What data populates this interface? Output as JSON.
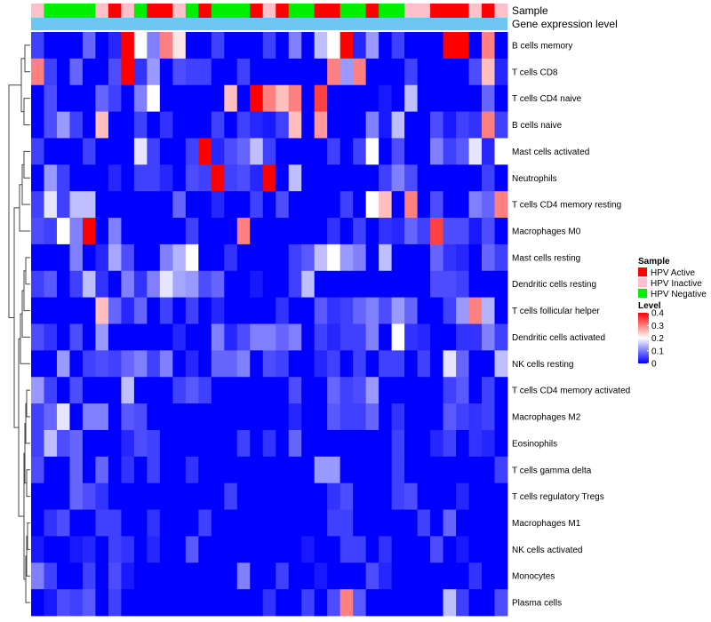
{
  "chart_data": {
    "type": "heatmap",
    "annotation_labels": {
      "sample": "Sample",
      "gene": "Gene expression level"
    },
    "row_labels": [
      "B cells memory",
      "T cells CD8",
      "T cells CD4 naive",
      "B cells naive",
      "Mast cells activated",
      "Neutrophils",
      "T cells CD4 memory resting",
      "Macrophages M0",
      "Mast cells resting",
      "Dendritic cells resting",
      "T cells follicular helper",
      "Dendritic cells activated",
      "NK cells resting",
      "T cells CD4 memory activated",
      "Macrophages M2",
      "Eosinophils",
      "T cells gamma delta",
      "T cells regulatory  Tregs",
      "Macrophages M1",
      "NK cells activated",
      "Monocytes",
      "Plasma cells"
    ],
    "sample_groups": [
      "Inactive",
      "Negative",
      "Negative",
      "Negative",
      "Negative",
      "Inactive",
      "Active",
      "Inactive",
      "Negative",
      "Active",
      "Active",
      "Inactive",
      "Negative",
      "Active",
      "Negative",
      "Negative",
      "Negative",
      "Active",
      "Inactive",
      "Active",
      "Negative",
      "Negative",
      "Active",
      "Active",
      "Negative",
      "Negative",
      "Active",
      "Negative",
      "Negative",
      "Inactive",
      "Inactive",
      "Active",
      "Active",
      "Active",
      "Inactive",
      "Active",
      "Inactive"
    ],
    "gene_expression_color": "#6ec6f2",
    "legend_sample": {
      "title": "Sample",
      "items": [
        {
          "label": "HPV Active",
          "color": "#ff0000"
        },
        {
          "label": "HPV Inactive",
          "color": "#ffc0cb"
        },
        {
          "label": "HPV Negative",
          "color": "#00ee00"
        }
      ]
    },
    "legend_level": {
      "title": "Level",
      "ticks": [
        "0.4",
        "0.3",
        "0.2",
        "0.1",
        "0"
      ],
      "tick_values": [
        0.4,
        0.3,
        0.2,
        0.1,
        0
      ],
      "range": [
        0,
        0.4
      ],
      "colors": [
        "#0000ff",
        "#ffffff",
        "#ff0000"
      ]
    },
    "values": [
      [
        0.05,
        0,
        0,
        0,
        0.08,
        0,
        0.03,
        0.4,
        0.2,
        0.1,
        0.3,
        0.22,
        0,
        0,
        0.05,
        0,
        0,
        0,
        0.05,
        0,
        0.1,
        0,
        0.15,
        0.2,
        0.4,
        0.03,
        0.12,
        0,
        0.05,
        0,
        0,
        0,
        0.4,
        0.4,
        0,
        0.3,
        0
      ],
      [
        0.3,
        0.05,
        0,
        0.08,
        0,
        0,
        0.06,
        0.4,
        0.04,
        0.12,
        0,
        0.06,
        0.05,
        0.05,
        0,
        0,
        0.05,
        0,
        0,
        0,
        0,
        0,
        0,
        0.3,
        0.12,
        0.3,
        0,
        0,
        0,
        0.05,
        0,
        0,
        0,
        0,
        0.06,
        0.25,
        0.03
      ],
      [
        0,
        0.06,
        0,
        0,
        0,
        0.08,
        0.05,
        0,
        0.1,
        0.2,
        0,
        0,
        0,
        0,
        0,
        0.25,
        0,
        0.4,
        0.3,
        0.25,
        0.3,
        0,
        0.35,
        0,
        0,
        0,
        0,
        0.02,
        0,
        0.15,
        0,
        0,
        0,
        0,
        0,
        0.08,
        0
      ],
      [
        0,
        0.06,
        0.12,
        0.05,
        0,
        0.25,
        0,
        0,
        0.05,
        0,
        0.04,
        0,
        0,
        0,
        0.05,
        0,
        0.05,
        0.03,
        0.02,
        0.05,
        0.25,
        0,
        0.28,
        0,
        0,
        0,
        0.1,
        0.02,
        0.15,
        0,
        0,
        0.06,
        0.02,
        0.05,
        0.04,
        0.3,
        0.05
      ],
      [
        0.05,
        0,
        0,
        0,
        0.05,
        0,
        0,
        0,
        0.18,
        0.05,
        0,
        0,
        0.05,
        0.4,
        0.03,
        0.06,
        0.08,
        0.15,
        0.05,
        0,
        0,
        0,
        0,
        0.05,
        0,
        0.05,
        0.2,
        0,
        0.06,
        0,
        0,
        0.1,
        0.05,
        0.07,
        0.18,
        0.03,
        0.2
      ],
      [
        0,
        0.12,
        0.05,
        0,
        0,
        0,
        0.03,
        0,
        0.05,
        0.05,
        0.03,
        0,
        0.06,
        0.05,
        0.4,
        0.05,
        0.06,
        0.03,
        0.4,
        0,
        0.15,
        0,
        0,
        0,
        0,
        0,
        0,
        0.05,
        0.1,
        0.06,
        0,
        0,
        0,
        0,
        0,
        0.05,
        0
      ],
      [
        0.05,
        0.18,
        0.05,
        0.15,
        0.15,
        0,
        0,
        0,
        0,
        0,
        0,
        0.08,
        0,
        0,
        0.03,
        0,
        0,
        0.05,
        0,
        0.06,
        0,
        0,
        0,
        0,
        0.05,
        0,
        0.2,
        0.25,
        0,
        0.3,
        0,
        0.06,
        0,
        0,
        0.1,
        0.08,
        0.3
      ],
      [
        0.06,
        0.05,
        0.2,
        0.1,
        0.4,
        0,
        0.1,
        0,
        0,
        0,
        0,
        0,
        0.05,
        0,
        0,
        0,
        0.3,
        0,
        0,
        0,
        0,
        0,
        0,
        0.04,
        0,
        0.05,
        0,
        0.04,
        0.03,
        0.08,
        0.05,
        0.35,
        0.06,
        0.06,
        0.02,
        0.06,
        0
      ],
      [
        0,
        0,
        0,
        0.1,
        0,
        0.03,
        0.13,
        0.06,
        0,
        0,
        0.1,
        0.14,
        0.2,
        0,
        0,
        0.04,
        0,
        0,
        0,
        0,
        0.05,
        0.07,
        0.15,
        0.2,
        0.12,
        0.1,
        0,
        0.15,
        0,
        0,
        0,
        0.08,
        0.04,
        0.03,
        0,
        0.08,
        0.05
      ],
      [
        0.05,
        0.07,
        0,
        0.05,
        0.15,
        0.04,
        0,
        0.1,
        0.04,
        0.1,
        0.18,
        0.13,
        0.12,
        0.06,
        0.08,
        0,
        0,
        0.02,
        0,
        0,
        0.05,
        0.15,
        0,
        0,
        0,
        0,
        0,
        0,
        0,
        0,
        0,
        0.06,
        0.06,
        0.05,
        0,
        0,
        0
      ],
      [
        0,
        0,
        0,
        0,
        0,
        0.25,
        0.08,
        0.03,
        0.08,
        0,
        0.05,
        0,
        0.05,
        0,
        0.03,
        0,
        0,
        0,
        0,
        0.04,
        0,
        0,
        0.07,
        0.04,
        0.05,
        0.08,
        0.1,
        0.06,
        0.12,
        0.08,
        0,
        0,
        0.05,
        0.12,
        0.3,
        0.14,
        0
      ],
      [
        0.06,
        0.04,
        0,
        0.06,
        0,
        0.12,
        0,
        0,
        0,
        0,
        0,
        0.03,
        0,
        0,
        0.1,
        0.03,
        0.06,
        0.1,
        0.1,
        0.08,
        0.1,
        0,
        0.05,
        0.03,
        0.05,
        0.05,
        0.1,
        0,
        0.2,
        0.04,
        0.03,
        0,
        0,
        0.04,
        0.04,
        0.1,
        0.05
      ],
      [
        0,
        0,
        0.12,
        0,
        0.05,
        0.06,
        0.05,
        0.08,
        0.1,
        0.05,
        0.1,
        0,
        0.03,
        0,
        0.08,
        0.08,
        0.1,
        0,
        0.06,
        0.05,
        0,
        0,
        0.03,
        0.05,
        0,
        0.05,
        0,
        0.05,
        0.05,
        0,
        0.05,
        0,
        0.18,
        0.08,
        0,
        0,
        0.15
      ],
      [
        0.12,
        0.05,
        0,
        0.06,
        0,
        0,
        0,
        0.15,
        0,
        0,
        0,
        0.05,
        0.07,
        0.05,
        0,
        0,
        0,
        0,
        0,
        0,
        0.06,
        0,
        0,
        0.08,
        0.05,
        0.06,
        0.12,
        0,
        0,
        0,
        0,
        0,
        0.05,
        0.07,
        0,
        0.05,
        0
      ],
      [
        0.05,
        0.08,
        0.18,
        0,
        0.1,
        0.1,
        0,
        0.07,
        0.06,
        0,
        0,
        0,
        0,
        0,
        0,
        0,
        0,
        0,
        0,
        0,
        0.03,
        0,
        0,
        0.07,
        0.05,
        0.05,
        0.08,
        0,
        0.04,
        0,
        0,
        0,
        0.07,
        0.05,
        0.04,
        0.05,
        0
      ],
      [
        0.05,
        0.15,
        0.06,
        0.08,
        0,
        0,
        0,
        0.03,
        0.06,
        0.05,
        0,
        0,
        0,
        0,
        0,
        0,
        0.05,
        0,
        0.04,
        0,
        0.08,
        0,
        0,
        0,
        0,
        0,
        0,
        0,
        0.05,
        0,
        0,
        0.03,
        0.05,
        0,
        0.04,
        0.03,
        0
      ],
      [
        0.06,
        0,
        0,
        0.08,
        0,
        0.08,
        0,
        0.04,
        0,
        0.05,
        0,
        0,
        0.04,
        0,
        0,
        0,
        0,
        0,
        0,
        0,
        0,
        0,
        0.12,
        0.12,
        0,
        0,
        0,
        0,
        0.05,
        0,
        0,
        0,
        0,
        0,
        0,
        0,
        0.05
      ],
      [
        0,
        0,
        0,
        0.08,
        0.06,
        0.04,
        0,
        0,
        0,
        0,
        0,
        0,
        0,
        0,
        0,
        0.05,
        0,
        0,
        0,
        0,
        0,
        0,
        0,
        0.04,
        0.06,
        0,
        0,
        0,
        0.05,
        0.06,
        0,
        0,
        0,
        0.03,
        0,
        0,
        0
      ],
      [
        0,
        0.04,
        0.06,
        0,
        0,
        0.05,
        0.05,
        0,
        0,
        0.04,
        0,
        0,
        0,
        0.05,
        0,
        0,
        0,
        0,
        0,
        0,
        0,
        0,
        0,
        0.05,
        0.05,
        0,
        0,
        0,
        0,
        0,
        0.05,
        0,
        0.08,
        0,
        0,
        0,
        0
      ],
      [
        0.02,
        0,
        0,
        0.02,
        0.03,
        0,
        0.05,
        0.04,
        0,
        0.03,
        0,
        0,
        0.07,
        0,
        0,
        0,
        0,
        0,
        0,
        0,
        0,
        0.02,
        0,
        0,
        0.05,
        0.05,
        0,
        0.04,
        0,
        0,
        0,
        0.06,
        0,
        0.02,
        0,
        0,
        0
      ],
      [
        0.1,
        0.05,
        0,
        0,
        0.05,
        0,
        0.06,
        0.02,
        0,
        0,
        0,
        0,
        0,
        0,
        0,
        0,
        0.1,
        0,
        0,
        0.05,
        0,
        0,
        0.02,
        0,
        0,
        0,
        0.06,
        0.03,
        0,
        0,
        0,
        0,
        0,
        0,
        0.04,
        0,
        0
      ],
      [
        0,
        0.02,
        0.06,
        0.05,
        0.07,
        0,
        0.05,
        0,
        0,
        0,
        0,
        0,
        0,
        0,
        0,
        0,
        0,
        0,
        0.04,
        0,
        0,
        0.05,
        0,
        0.06,
        0.3,
        0.07,
        0,
        0,
        0,
        0,
        0,
        0,
        0.15,
        0.05,
        0,
        0,
        0.06
      ]
    ]
  }
}
